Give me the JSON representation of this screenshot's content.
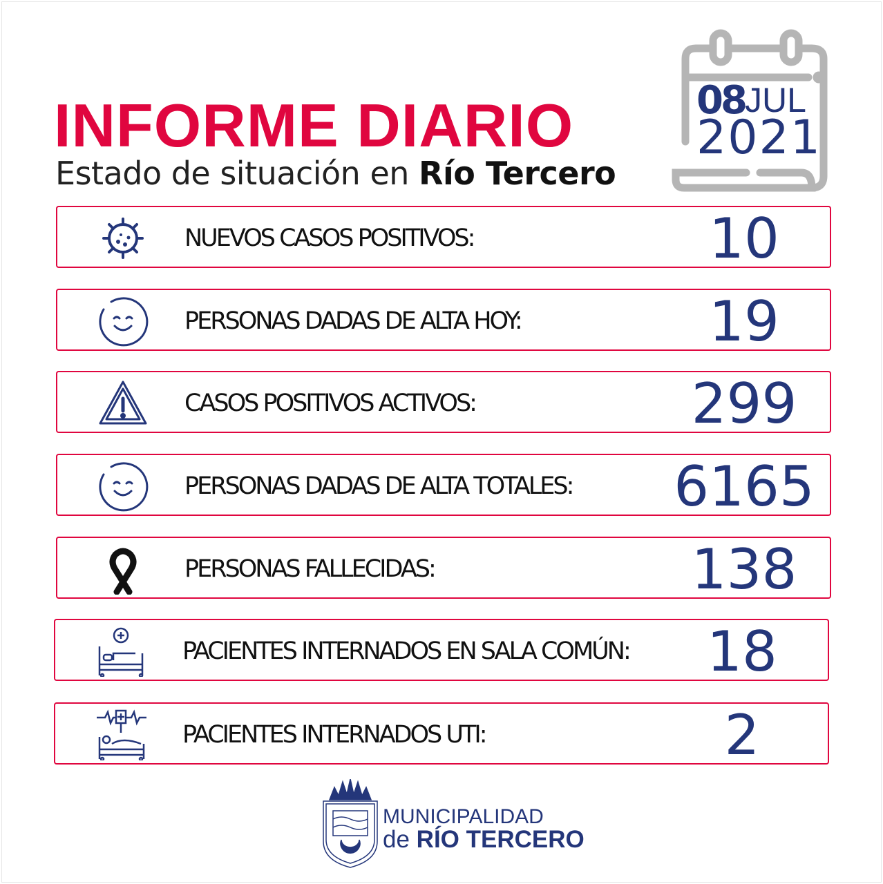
{
  "header": {
    "title": "INFORME DIARIO",
    "subtitle_prefix": "Estado de situación en",
    "subtitle_city": "Río Tercero"
  },
  "date": {
    "day": "08",
    "month": "JUL",
    "year": "2021",
    "icon": "calendar-icon"
  },
  "colors": {
    "accent": "#e0063f",
    "navy": "#24367a",
    "calendar_gray": "#b5b5b5"
  },
  "stats": [
    {
      "icon": "virus-icon",
      "label": "NUEVOS CASOS POSITIVOS:",
      "value": "10"
    },
    {
      "icon": "smile-icon",
      "label": "PERSONAS DADAS DE ALTA HOY:",
      "value": "19"
    },
    {
      "icon": "warning-icon",
      "label": "CASOS POSITIVOS ACTIVOS:",
      "value": "299"
    },
    {
      "icon": "smile-icon",
      "label": "PERSONAS DADAS DE ALTA TOTALES:",
      "value": "6165"
    },
    {
      "icon": "mourning-ribbon-icon",
      "label": "PERSONAS FALLECIDAS:",
      "value": "138"
    },
    {
      "icon": "hospital-bed-icon",
      "label": "PACIENTES INTERNADOS EN SALA COMÚN:",
      "value": "18"
    },
    {
      "icon": "icu-bed-icon",
      "label": "PACIENTES INTERNADOS UTI:",
      "value": "2"
    }
  ],
  "footer": {
    "line1": "MUNICIPALIDAD",
    "line2_prefix": "de",
    "line2_city": "RÍO TERCERO"
  }
}
